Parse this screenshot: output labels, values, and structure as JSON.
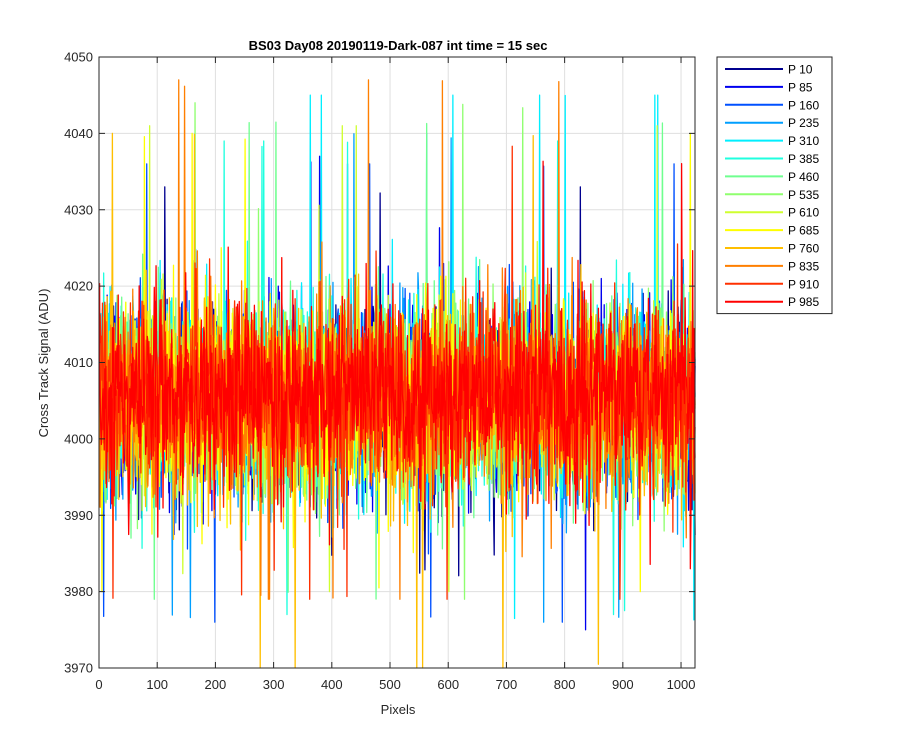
{
  "chart_data": {
    "type": "line",
    "title": "BS03 Day08 20190119-Dark-087 int time = 15 sec",
    "xlabel": "Pixels",
    "ylabel": "Cross Track Signal (ADU)",
    "xlim": [
      0,
      1024
    ],
    "ylim": [
      3970,
      4050
    ],
    "x_ticks": [
      0,
      100,
      200,
      300,
      400,
      500,
      600,
      700,
      800,
      900,
      1000
    ],
    "y_ticks": [
      3970,
      3980,
      3990,
      4000,
      4010,
      4020,
      4030,
      4040,
      4050
    ],
    "x_tick_labels": [
      "0",
      "100",
      "200",
      "300",
      "400",
      "500",
      "600",
      "700",
      "800",
      "900",
      "1000"
    ],
    "y_tick_labels": [
      "3970",
      "3980",
      "3990",
      "4000",
      "4010",
      "4020",
      "4030",
      "4040",
      "4050"
    ],
    "grid": true,
    "legend_position": "outside-top-right",
    "x": "pixel index 1..1024 (one point per pixel)",
    "series": [
      {
        "name": "P 10",
        "color": "#00008f",
        "mean": 4005,
        "min": 3982,
        "max": 4033
      },
      {
        "name": "P 85",
        "color": "#0000ef",
        "mean": 4005,
        "min": 3975,
        "max": 4037
      },
      {
        "name": "P 160",
        "color": "#0050ff",
        "mean": 4005,
        "min": 3976,
        "max": 4036
      },
      {
        "name": "P 235",
        "color": "#009fff",
        "mean": 4005,
        "min": 3976,
        "max": 4040
      },
      {
        "name": "P 310",
        "color": "#00efff",
        "mean": 4005,
        "min": 3976,
        "max": 4045
      },
      {
        "name": "P 385",
        "color": "#1fffdf",
        "mean": 4005,
        "min": 3977,
        "max": 4039
      },
      {
        "name": "P 460",
        "color": "#6fff8f",
        "mean": 4005,
        "min": 3979,
        "max": 4042
      },
      {
        "name": "P 535",
        "color": "#8fff6f",
        "mean": 4005,
        "min": 3979,
        "max": 4044
      },
      {
        "name": "P 610",
        "color": "#cfff2f",
        "mean": 4005,
        "min": 3980,
        "max": 4041
      },
      {
        "name": "P 685",
        "color": "#ffff00",
        "mean": 4005,
        "min": 3980,
        "max": 4040
      },
      {
        "name": "P 760",
        "color": "#ffbf00",
        "mean": 4005,
        "min": 3970,
        "max": 4040
      },
      {
        "name": "P 835",
        "color": "#ff7f00",
        "mean": 4005,
        "min": 3979,
        "max": 4047
      },
      {
        "name": "P 910",
        "color": "#ff3000",
        "mean": 4006,
        "min": 3979,
        "max": 4039
      },
      {
        "name": "P 985",
        "color": "#ff0000",
        "mean": 4006,
        "min": 3983,
        "max": 4037
      }
    ]
  }
}
